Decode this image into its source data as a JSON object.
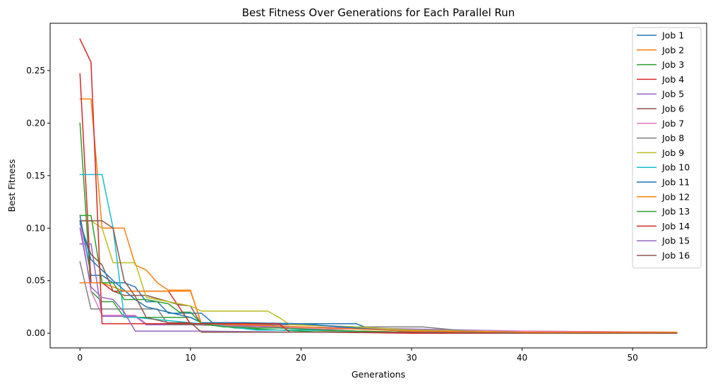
{
  "chart_data": {
    "type": "line",
    "title": "Best Fitness Over Generations for Each Parallel Run",
    "xlabel": "Generations",
    "ylabel": "Best Fitness",
    "xlim": [
      -2.7,
      56.7
    ],
    "ylim": [
      -0.014,
      0.295
    ],
    "xticks": [
      0,
      10,
      20,
      30,
      40,
      50
    ],
    "xtick_labels": [
      "0",
      "10",
      "20",
      "30",
      "40",
      "50"
    ],
    "yticks": [
      0.0,
      0.05,
      0.1,
      0.15,
      0.2,
      0.25
    ],
    "ytick_labels": [
      "0.00",
      "0.05",
      "0.10",
      "0.15",
      "0.20",
      "0.25"
    ],
    "grid": false,
    "legend_position": "top-right",
    "series": [
      {
        "name": "Job 1",
        "color": "#1f77b4",
        "x": [
          0,
          1,
          2,
          3,
          4,
          5,
          6,
          7,
          8,
          9,
          10,
          11,
          12,
          13,
          15,
          17,
          20,
          25,
          26,
          28,
          32,
          36,
          44,
          54
        ],
        "y": [
          0.112,
          0.055,
          0.055,
          0.048,
          0.048,
          0.044,
          0.03,
          0.03,
          0.019,
          0.019,
          0.019,
          0.019,
          0.01,
          0.009,
          0.009,
          0.009,
          0.009,
          0.009,
          0.005,
          0.004,
          0.003,
          0.002,
          0.001,
          0.001
        ]
      },
      {
        "name": "Job 2",
        "color": "#ff7f0e",
        "x": [
          0,
          1,
          2,
          3,
          4,
          5,
          6,
          7,
          8,
          10,
          11,
          14,
          18,
          20,
          22,
          30,
          40,
          54
        ],
        "y": [
          0.223,
          0.223,
          0.1,
          0.1,
          0.1,
          0.065,
          0.06,
          0.048,
          0.041,
          0.041,
          0.008,
          0.008,
          0.006,
          0.004,
          0.002,
          0.001,
          0.001,
          0.001
        ]
      },
      {
        "name": "Job 3",
        "color": "#2ca02c",
        "x": [
          0,
          1,
          2,
          3,
          4,
          5,
          6,
          8,
          10,
          11,
          14,
          18,
          22,
          30,
          40,
          54
        ],
        "y": [
          0.2,
          0.04,
          0.03,
          0.03,
          0.015,
          0.015,
          0.015,
          0.015,
          0.015,
          0.01,
          0.005,
          0.003,
          0.001,
          0.001,
          0.0,
          0.0
        ]
      },
      {
        "name": "Job 4",
        "color": "#d62728",
        "x": [
          0,
          1,
          2,
          3,
          4,
          5,
          8,
          10,
          11,
          15,
          20,
          25,
          30,
          40,
          54
        ],
        "y": [
          0.247,
          0.048,
          0.048,
          0.04,
          0.04,
          0.04,
          0.04,
          0.009,
          0.009,
          0.009,
          0.004,
          0.002,
          0.001,
          0.001,
          0.001
        ]
      },
      {
        "name": "Job 5",
        "color": "#9467bd",
        "x": [
          0,
          1,
          2,
          3,
          4,
          5,
          6,
          10,
          15,
          20,
          25,
          30,
          35,
          40,
          54
        ],
        "y": [
          0.085,
          0.085,
          0.016,
          0.016,
          0.016,
          0.016,
          0.008,
          0.008,
          0.007,
          0.006,
          0.005,
          0.004,
          0.003,
          0.002,
          0.001
        ]
      },
      {
        "name": "Job 6",
        "color": "#8c564b",
        "x": [
          0,
          1,
          2,
          3,
          4,
          5,
          6,
          7,
          8,
          9,
          10,
          11,
          15,
          18,
          22,
          26,
          30,
          40,
          54
        ],
        "y": [
          0.104,
          0.075,
          0.065,
          0.04,
          0.036,
          0.036,
          0.036,
          0.033,
          0.03,
          0.027,
          0.026,
          0.008,
          0.006,
          0.005,
          0.004,
          0.004,
          0.002,
          0.001,
          0.001
        ]
      },
      {
        "name": "Job 7",
        "color": "#e377c2",
        "x": [
          0,
          1,
          2,
          3,
          4,
          5,
          6,
          10,
          15,
          20,
          22,
          26,
          30,
          40,
          54
        ],
        "y": [
          0.107,
          0.04,
          0.017,
          0.017,
          0.017,
          0.017,
          0.009,
          0.009,
          0.006,
          0.005,
          0.004,
          0.004,
          0.003,
          0.002,
          0.001
        ]
      },
      {
        "name": "Job 8",
        "color": "#7f7f7f",
        "x": [
          0,
          1,
          2,
          3,
          4,
          5,
          6,
          7,
          8,
          11,
          15,
          20,
          25,
          31,
          35,
          40,
          54
        ],
        "y": [
          0.068,
          0.023,
          0.023,
          0.023,
          0.023,
          0.023,
          0.023,
          0.023,
          0.008,
          0.008,
          0.008,
          0.008,
          0.006,
          0.006,
          0.002,
          0.001,
          0.001
        ]
      },
      {
        "name": "Job 9",
        "color": "#bcbd22",
        "x": [
          0,
          1,
          2,
          3,
          4,
          5,
          6,
          10,
          11,
          17,
          18,
          19,
          25,
          30,
          40,
          54
        ],
        "y": [
          0.107,
          0.107,
          0.1,
          0.067,
          0.067,
          0.067,
          0.034,
          0.026,
          0.021,
          0.021,
          0.015,
          0.008,
          0.006,
          0.003,
          0.001,
          0.001
        ]
      },
      {
        "name": "Job 10",
        "color": "#17becf",
        "x": [
          0,
          1,
          2,
          3,
          4,
          5,
          10,
          11,
          16,
          20,
          24,
          30,
          40,
          54
        ],
        "y": [
          0.151,
          0.151,
          0.151,
          0.1,
          0.015,
          0.015,
          0.01,
          0.009,
          0.003,
          0.003,
          0.002,
          0.001,
          0.001,
          0.001
        ]
      },
      {
        "name": "Job 11",
        "color": "#1f77b4",
        "x": [
          0,
          1,
          2,
          3,
          5,
          6,
          8,
          10,
          11,
          15,
          20,
          25,
          26,
          30,
          40,
          54
        ],
        "y": [
          0.107,
          0.07,
          0.06,
          0.05,
          0.032,
          0.025,
          0.02,
          0.015,
          0.01,
          0.01,
          0.009,
          0.005,
          0.004,
          0.002,
          0.001,
          0.001
        ]
      },
      {
        "name": "Job 12",
        "color": "#ff7f0e",
        "x": [
          0,
          1,
          2,
          4,
          5,
          6,
          8,
          10,
          11,
          15,
          20,
          25,
          30,
          40,
          54
        ],
        "y": [
          0.048,
          0.048,
          0.048,
          0.04,
          0.04,
          0.04,
          0.04,
          0.04,
          0.009,
          0.008,
          0.006,
          0.004,
          0.002,
          0.001,
          0.001
        ]
      },
      {
        "name": "Job 13",
        "color": "#2ca02c",
        "x": [
          0,
          1,
          2,
          3,
          4,
          5,
          6,
          8,
          9,
          10,
          11,
          13,
          14,
          16,
          18,
          20,
          25,
          30,
          40,
          54
        ],
        "y": [
          0.112,
          0.112,
          0.048,
          0.048,
          0.032,
          0.032,
          0.032,
          0.028,
          0.02,
          0.02,
          0.009,
          0.006,
          0.006,
          0.005,
          0.005,
          0.004,
          0.002,
          0.001,
          0.0,
          0.0
        ]
      },
      {
        "name": "Job 14",
        "color": "#d62728",
        "x": [
          0,
          1,
          2,
          3,
          4,
          10,
          11,
          18,
          19,
          22,
          30,
          40,
          54
        ],
        "y": [
          0.28,
          0.258,
          0.009,
          0.009,
          0.009,
          0.009,
          0.009,
          0.009,
          0.001,
          0.001,
          0.0,
          0.0,
          0.0
        ]
      },
      {
        "name": "Job 15",
        "color": "#9467bd",
        "x": [
          0,
          1,
          2,
          3,
          4,
          5,
          8,
          10,
          11,
          20,
          30,
          40,
          54
        ],
        "y": [
          0.1,
          0.044,
          0.034,
          0.032,
          0.02,
          0.002,
          0.002,
          0.002,
          0.002,
          0.001,
          0.001,
          0.0,
          0.0
        ]
      },
      {
        "name": "Job 16",
        "color": "#8c564b",
        "x": [
          0,
          1,
          2,
          3,
          4,
          5,
          6,
          8,
          10,
          11,
          15,
          20,
          30,
          40,
          54
        ],
        "y": [
          0.107,
          0.107,
          0.107,
          0.1,
          0.05,
          0.035,
          0.015,
          0.01,
          0.01,
          0.001,
          0.001,
          0.001,
          0.001,
          0.0,
          0.0
        ]
      }
    ]
  }
}
